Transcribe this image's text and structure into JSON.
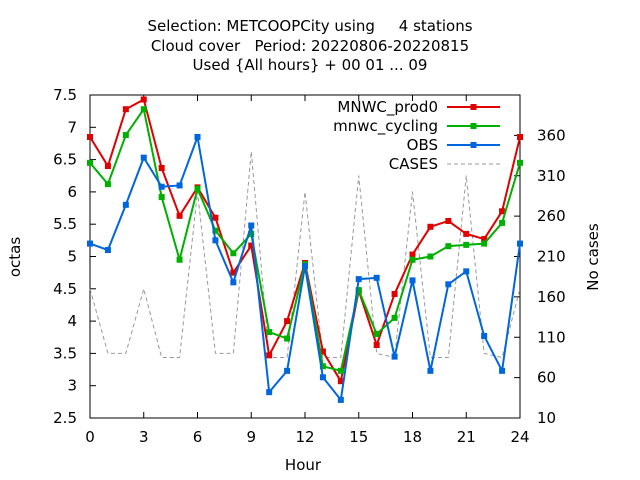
{
  "title": {
    "line1": "Selection: METCOOPCity using     4 stations",
    "line2": "Cloud cover   Period: 20220806-20220815",
    "line3": "Used {All hours} + 00 01 ... 09"
  },
  "chart_data": {
    "type": "line",
    "xlabel": "Hour",
    "ylabel": "octas",
    "y2label": "No cases",
    "xlim": [
      0,
      24
    ],
    "ylim": [
      2.5,
      7.5
    ],
    "y2lim": [
      10,
      410
    ],
    "xticks": [
      "0",
      "3",
      "6",
      "9",
      "12",
      "15",
      "18",
      "21",
      "24"
    ],
    "yticks": [
      "2.5",
      "3",
      "3.5",
      "4",
      "4.5",
      "5",
      "5.5",
      "6",
      "6.5",
      "7",
      "7.5"
    ],
    "y2ticks": [
      "10",
      "60",
      "110",
      "160",
      "210",
      "260",
      "310",
      "360"
    ],
    "legend_position": "top-right",
    "grid": false,
    "x": [
      0,
      1,
      2,
      3,
      4,
      5,
      6,
      7,
      8,
      9,
      10,
      11,
      12,
      13,
      14,
      15,
      16,
      17,
      18,
      19,
      20,
      21,
      22,
      23,
      24
    ],
    "series": [
      {
        "name": "MNWC_prod0",
        "color": "#e00000",
        "marker": "square",
        "values": [
          6.85,
          6.4,
          7.28,
          7.43,
          6.37,
          5.63,
          6.07,
          5.6,
          4.75,
          5.17,
          3.47,
          4.0,
          4.9,
          3.53,
          3.07,
          4.47,
          3.63,
          4.42,
          5.03,
          5.46,
          5.55,
          5.35,
          5.27,
          5.7,
          6.85
        ]
      },
      {
        "name": "mnwc_cycling",
        "color": "#00b000",
        "marker": "square",
        "values": [
          6.45,
          6.12,
          6.88,
          7.28,
          5.92,
          4.95,
          6.05,
          5.4,
          5.05,
          5.35,
          3.83,
          3.73,
          4.88,
          3.3,
          3.23,
          4.48,
          3.8,
          4.05,
          4.95,
          5.0,
          5.16,
          5.18,
          5.2,
          5.52,
          6.45
        ]
      },
      {
        "name": "OBS",
        "color": "#0066dd",
        "marker": "square",
        "values": [
          5.2,
          5.1,
          5.8,
          6.53,
          6.08,
          6.1,
          6.85,
          5.25,
          4.6,
          5.48,
          2.9,
          3.23,
          4.85,
          3.13,
          2.78,
          4.65,
          4.67,
          3.45,
          4.63,
          3.23,
          4.57,
          4.77,
          3.77,
          3.23,
          5.2
        ]
      },
      {
        "name": "CASES",
        "color": "#999999",
        "marker": "none",
        "dashed": true,
        "axis": "y2",
        "values": [
          170,
          90,
          90,
          170,
          85,
          85,
          290,
          90,
          90,
          340,
          85,
          85,
          290,
          85,
          85,
          310,
          90,
          85,
          290,
          85,
          85,
          310,
          90,
          85,
          170
        ]
      }
    ]
  }
}
